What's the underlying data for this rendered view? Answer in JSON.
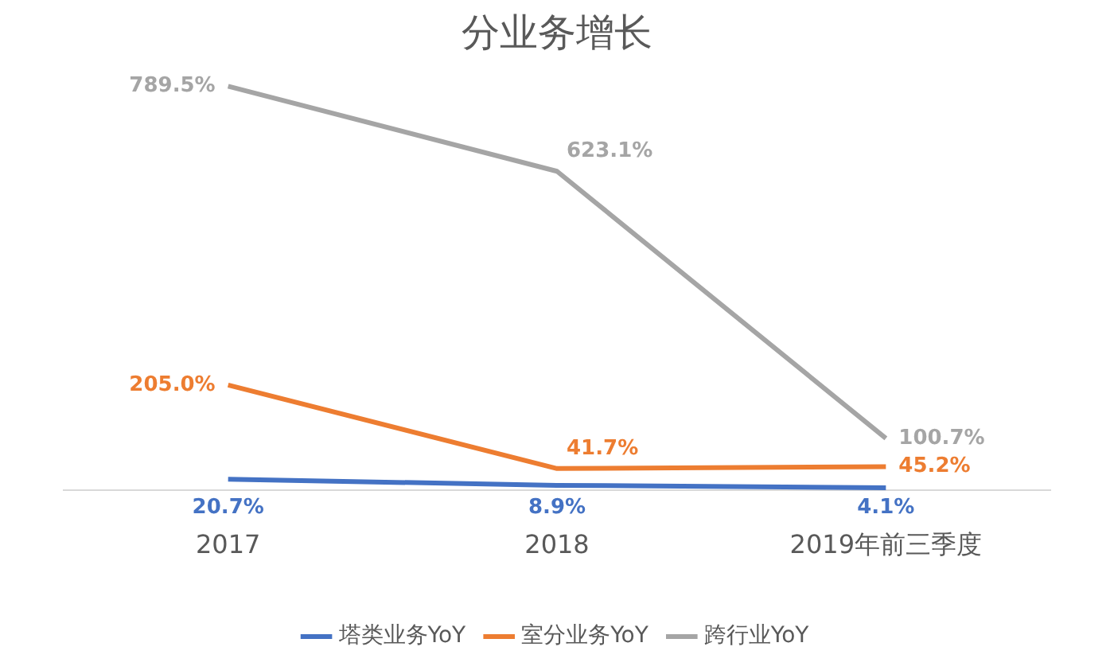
{
  "chart_data": {
    "type": "line",
    "title": "分业务增长",
    "categories": [
      "2017",
      "2018",
      "2019年前三季度"
    ],
    "series": [
      {
        "name": "塔类业务YoY",
        "color": "#4472c4",
        "values": [
          20.7,
          8.9,
          4.1
        ],
        "value_labels": [
          "20.7%",
          "8.9%",
          "4.1%"
        ]
      },
      {
        "name": "室分业务YoY",
        "color": "#ed7d31",
        "values": [
          205.0,
          41.7,
          45.2
        ],
        "value_labels": [
          "205.0%",
          "41.7%",
          "45.2%"
        ]
      },
      {
        "name": "跨行业YoY",
        "color": "#a5a5a5",
        "values": [
          789.5,
          623.1,
          100.7
        ],
        "value_labels": [
          "789.5%",
          "623.1%",
          "100.7%"
        ]
      }
    ],
    "tick_labels": "x",
    "grid": false,
    "legend": "bottom",
    "marker": "none",
    "line_style": "solid"
  }
}
